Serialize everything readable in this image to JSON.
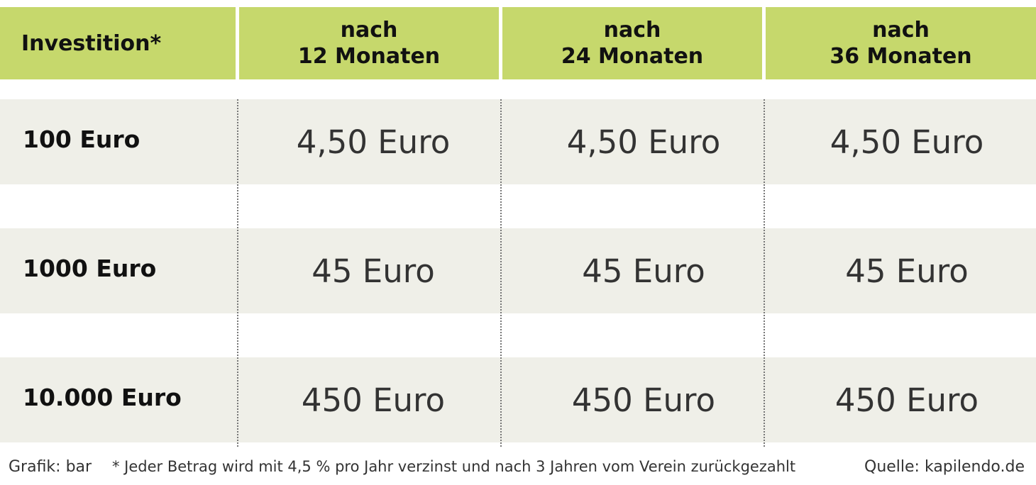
{
  "chart_data": {
    "type": "table",
    "header": {
      "first": "Investition*",
      "columns": [
        {
          "line1": "nach",
          "line2": "12 Monaten"
        },
        {
          "line1": "nach",
          "line2": "24 Monaten"
        },
        {
          "line1": "nach",
          "line2": "36 Monaten"
        }
      ]
    },
    "rows": [
      {
        "label": "100 Euro",
        "values": [
          "4,50 Euro",
          "4,50 Euro",
          "4,50 Euro"
        ]
      },
      {
        "label": "1000 Euro",
        "values": [
          "45 Euro",
          "45 Euro",
          "45 Euro"
        ]
      },
      {
        "label": "10.000 Euro",
        "values": [
          "450 Euro",
          "450 Euro",
          "450 Euro"
        ]
      }
    ]
  },
  "footer": {
    "credit": "Grafik: bar",
    "note": "* Jeder Betrag wird mit 4,5 % pro Jahr verzinst und nach 3 Jahren vom Verein zurückgezahlt",
    "source": "Quelle: kapilendo.de"
  },
  "colors": {
    "header_bg": "#c6d86c",
    "row_band_bg": "#efefe8"
  }
}
